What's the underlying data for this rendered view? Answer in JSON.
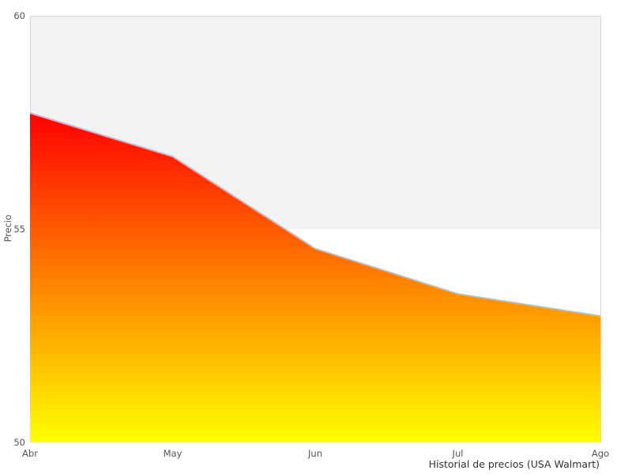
{
  "chart_data": {
    "type": "area",
    "categories": [
      "Abr",
      "May",
      "Jun",
      "Jul",
      "Ago"
    ],
    "values": [
      57.72,
      56.7,
      54.54,
      53.48,
      52.96
    ],
    "series_name": "Precio",
    "title": "",
    "xlabel": "Historial de precios (USA Walmart)",
    "ylabel": "Precio",
    "ylim": [
      50,
      60
    ],
    "yticks": [
      50,
      55,
      60
    ],
    "grid": false,
    "legend": "none",
    "alt_band": {
      "from": 55,
      "to": 60
    },
    "colors": {
      "gradient_top": "#ff0000",
      "gradient_bottom": "#ffff00",
      "line": "#a3c1de",
      "band": "#f2f2f2",
      "spine": "#d6d6d6",
      "tick_text": "#555555",
      "caption_text": "#333333",
      "background": "#ffffff"
    }
  }
}
